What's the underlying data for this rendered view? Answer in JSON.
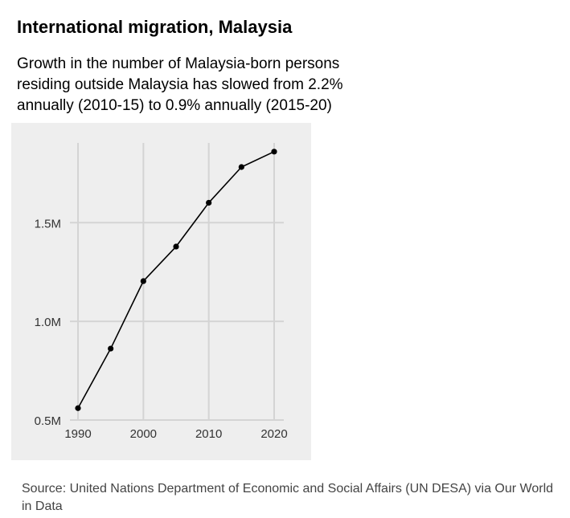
{
  "chart_data": {
    "type": "line",
    "title": "International migration, Malaysia",
    "subtitle": "Growth in the number of Malaysia-born persons residing outside Malaysia has slowed from 2.2% annually (2010-15) to 0.9% annually (2015-20)",
    "source": "Source: United Nations Department of Economic and Social Affairs (UN DESA) via Our World in Data",
    "xlabel": "",
    "ylabel": "",
    "x": [
      1990,
      1995,
      2000,
      2005,
      2010,
      2015,
      2020
    ],
    "series": [
      {
        "values": [
          560000,
          862000,
          1204000,
          1379000,
          1601000,
          1782000,
          1860000
        ]
      }
    ],
    "xlim": [
      1990,
      2020
    ],
    "ylim": [
      500000,
      1900000
    ],
    "x_ticks": [
      1990,
      2000,
      2010,
      2020
    ],
    "x_tick_labels": [
      "1990",
      "2000",
      "2010",
      "2020"
    ],
    "y_ticks": [
      500000,
      1000000,
      1500000
    ],
    "y_tick_labels": [
      "0.5M",
      "1.0M",
      "1.5M"
    ],
    "grid": true,
    "legend": "none",
    "colors": {
      "line": "#000000",
      "marker": "#000000",
      "grid": "#d4d4d4",
      "panel_background": "#eeeeee",
      "tick_text": "#333333"
    }
  }
}
